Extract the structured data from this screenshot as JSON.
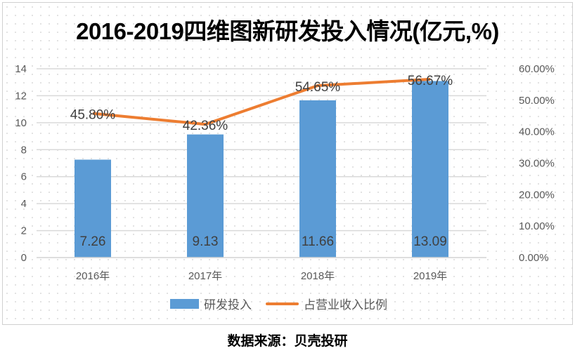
{
  "chart_data": {
    "type": "bar+line",
    "title": "2016-2019四维图新研发投入情况(亿元,%)",
    "categories": [
      "2016年",
      "2017年",
      "2018年",
      "2019年"
    ],
    "series": [
      {
        "name": "研发投入",
        "type": "bar",
        "axis": "left",
        "values": [
          7.26,
          9.13,
          11.66,
          13.09
        ],
        "labels": [
          "7.26",
          "9.13",
          "11.66",
          "13.09"
        ],
        "color": "#5b9bd5"
      },
      {
        "name": "占营业收入比例",
        "type": "line",
        "axis": "right",
        "values": [
          45.8,
          42.36,
          54.65,
          56.67
        ],
        "labels": [
          "45.80%",
          "42.36%",
          "54.65%",
          "56.67%"
        ],
        "color": "#ed7d31"
      }
    ],
    "y_left": {
      "range": [
        0,
        14
      ],
      "ticks": [
        "0",
        "2",
        "4",
        "6",
        "8",
        "10",
        "12",
        "14"
      ]
    },
    "y_right": {
      "range": [
        0,
        60
      ],
      "ticks": [
        "0.00%",
        "10.00%",
        "20.00%",
        "30.00%",
        "40.00%",
        "50.00%",
        "60.00%"
      ]
    },
    "grid": "horizontal",
    "legend_position": "bottom"
  },
  "source": "数据来源：贝壳投研"
}
